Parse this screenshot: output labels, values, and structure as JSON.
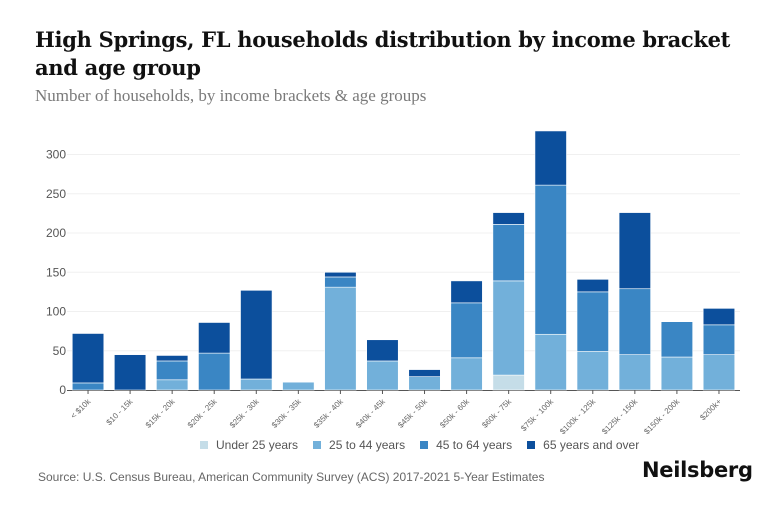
{
  "header": {
    "title": "High Springs, FL households distribution by income bracket and age group",
    "subtitle": "Number of households, by income brackets & age groups"
  },
  "footer": {
    "source": "Source: U.S. Census Bureau, American Community Survey (ACS) 2017-2021 5-Year Estimates",
    "brand": "Neilsberg"
  },
  "chart_data": {
    "type": "bar",
    "stacked": true,
    "title": "High Springs, FL households distribution by income bracket and age group",
    "subtitle": "Number of households, by income brackets & age groups",
    "xlabel": "",
    "ylabel": "",
    "ylim": [
      0,
      330
    ],
    "yticks": [
      0,
      50,
      100,
      150,
      200,
      250,
      300
    ],
    "grid": true,
    "legend_position": "bottom",
    "categories": [
      "< $10k",
      "$10 - 15k",
      "$15k - 20k",
      "$20k - 25k",
      "$25k - 30k",
      "$30k - 35k",
      "$35k - 40k",
      "$40k - 45k",
      "$45k - 50k",
      "$50k - 60k",
      "$60k - 75k",
      "$75k - 100k",
      "$100k - 125k",
      "$125k - 150k",
      "$150k - 200k",
      "$200k+"
    ],
    "series": [
      {
        "name": "Under 25 years",
        "color": "#c5dde8",
        "values": [
          0,
          0,
          0,
          0,
          0,
          0,
          0,
          0,
          0,
          0,
          19,
          0,
          0,
          0,
          0,
          0
        ]
      },
      {
        "name": "25 to 44 years",
        "color": "#72b0da",
        "values": [
          0,
          0,
          13,
          0,
          14,
          10,
          131,
          37,
          17,
          41,
          120,
          71,
          49,
          45,
          42,
          45
        ]
      },
      {
        "name": "45 to 64 years",
        "color": "#3a86c4",
        "values": [
          9,
          0,
          24,
          47,
          0,
          0,
          13,
          0,
          0,
          70,
          72,
          190,
          76,
          84,
          45,
          38
        ]
      },
      {
        "name": "65 years and over",
        "color": "#0c4f9c",
        "values": [
          63,
          45,
          7,
          39,
          113,
          0,
          6,
          27,
          9,
          28,
          15,
          69,
          16,
          97,
          0,
          21
        ]
      }
    ]
  }
}
